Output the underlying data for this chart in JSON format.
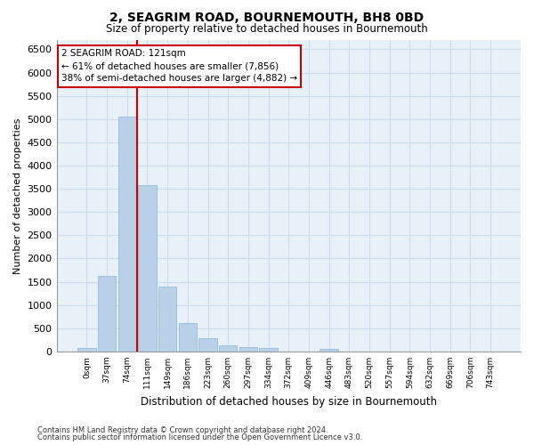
{
  "title": "2, SEAGRIM ROAD, BOURNEMOUTH, BH8 0BD",
  "subtitle": "Size of property relative to detached houses in Bournemouth",
  "xlabel": "Distribution of detached houses by size in Bournemouth",
  "ylabel": "Number of detached properties",
  "footer_line1": "Contains HM Land Registry data © Crown copyright and database right 2024.",
  "footer_line2": "Contains public sector information licensed under the Open Government Licence v3.0.",
  "bar_labels": [
    "0sqm",
    "37sqm",
    "74sqm",
    "111sqm",
    "149sqm",
    "186sqm",
    "223sqm",
    "260sqm",
    "297sqm",
    "334sqm",
    "372sqm",
    "409sqm",
    "446sqm",
    "483sqm",
    "520sqm",
    "557sqm",
    "594sqm",
    "632sqm",
    "669sqm",
    "706sqm",
    "743sqm"
  ],
  "bar_values": [
    75,
    1620,
    5060,
    3570,
    1400,
    620,
    290,
    140,
    95,
    70,
    0,
    0,
    65,
    0,
    0,
    0,
    0,
    0,
    0,
    0,
    0
  ],
  "bar_color": "#b8d0e8",
  "bar_edgecolor": "#8ab4d4",
  "ylim": [
    0,
    6700
  ],
  "yticks": [
    0,
    500,
    1000,
    1500,
    2000,
    2500,
    3000,
    3500,
    4000,
    4500,
    5000,
    5500,
    6000,
    6500
  ],
  "vline_x": 2.5,
  "annotation_title": "2 SEAGRIM ROAD: 121sqm",
  "annotation_line1": "← 61% of detached houses are smaller (7,856)",
  "annotation_line2": "38% of semi-detached houses are larger (4,882) →",
  "vline_color": "#cc0000",
  "annotation_border_color": "#cc0000",
  "grid_color": "#ccddee",
  "background_color": "#e8f0f8"
}
